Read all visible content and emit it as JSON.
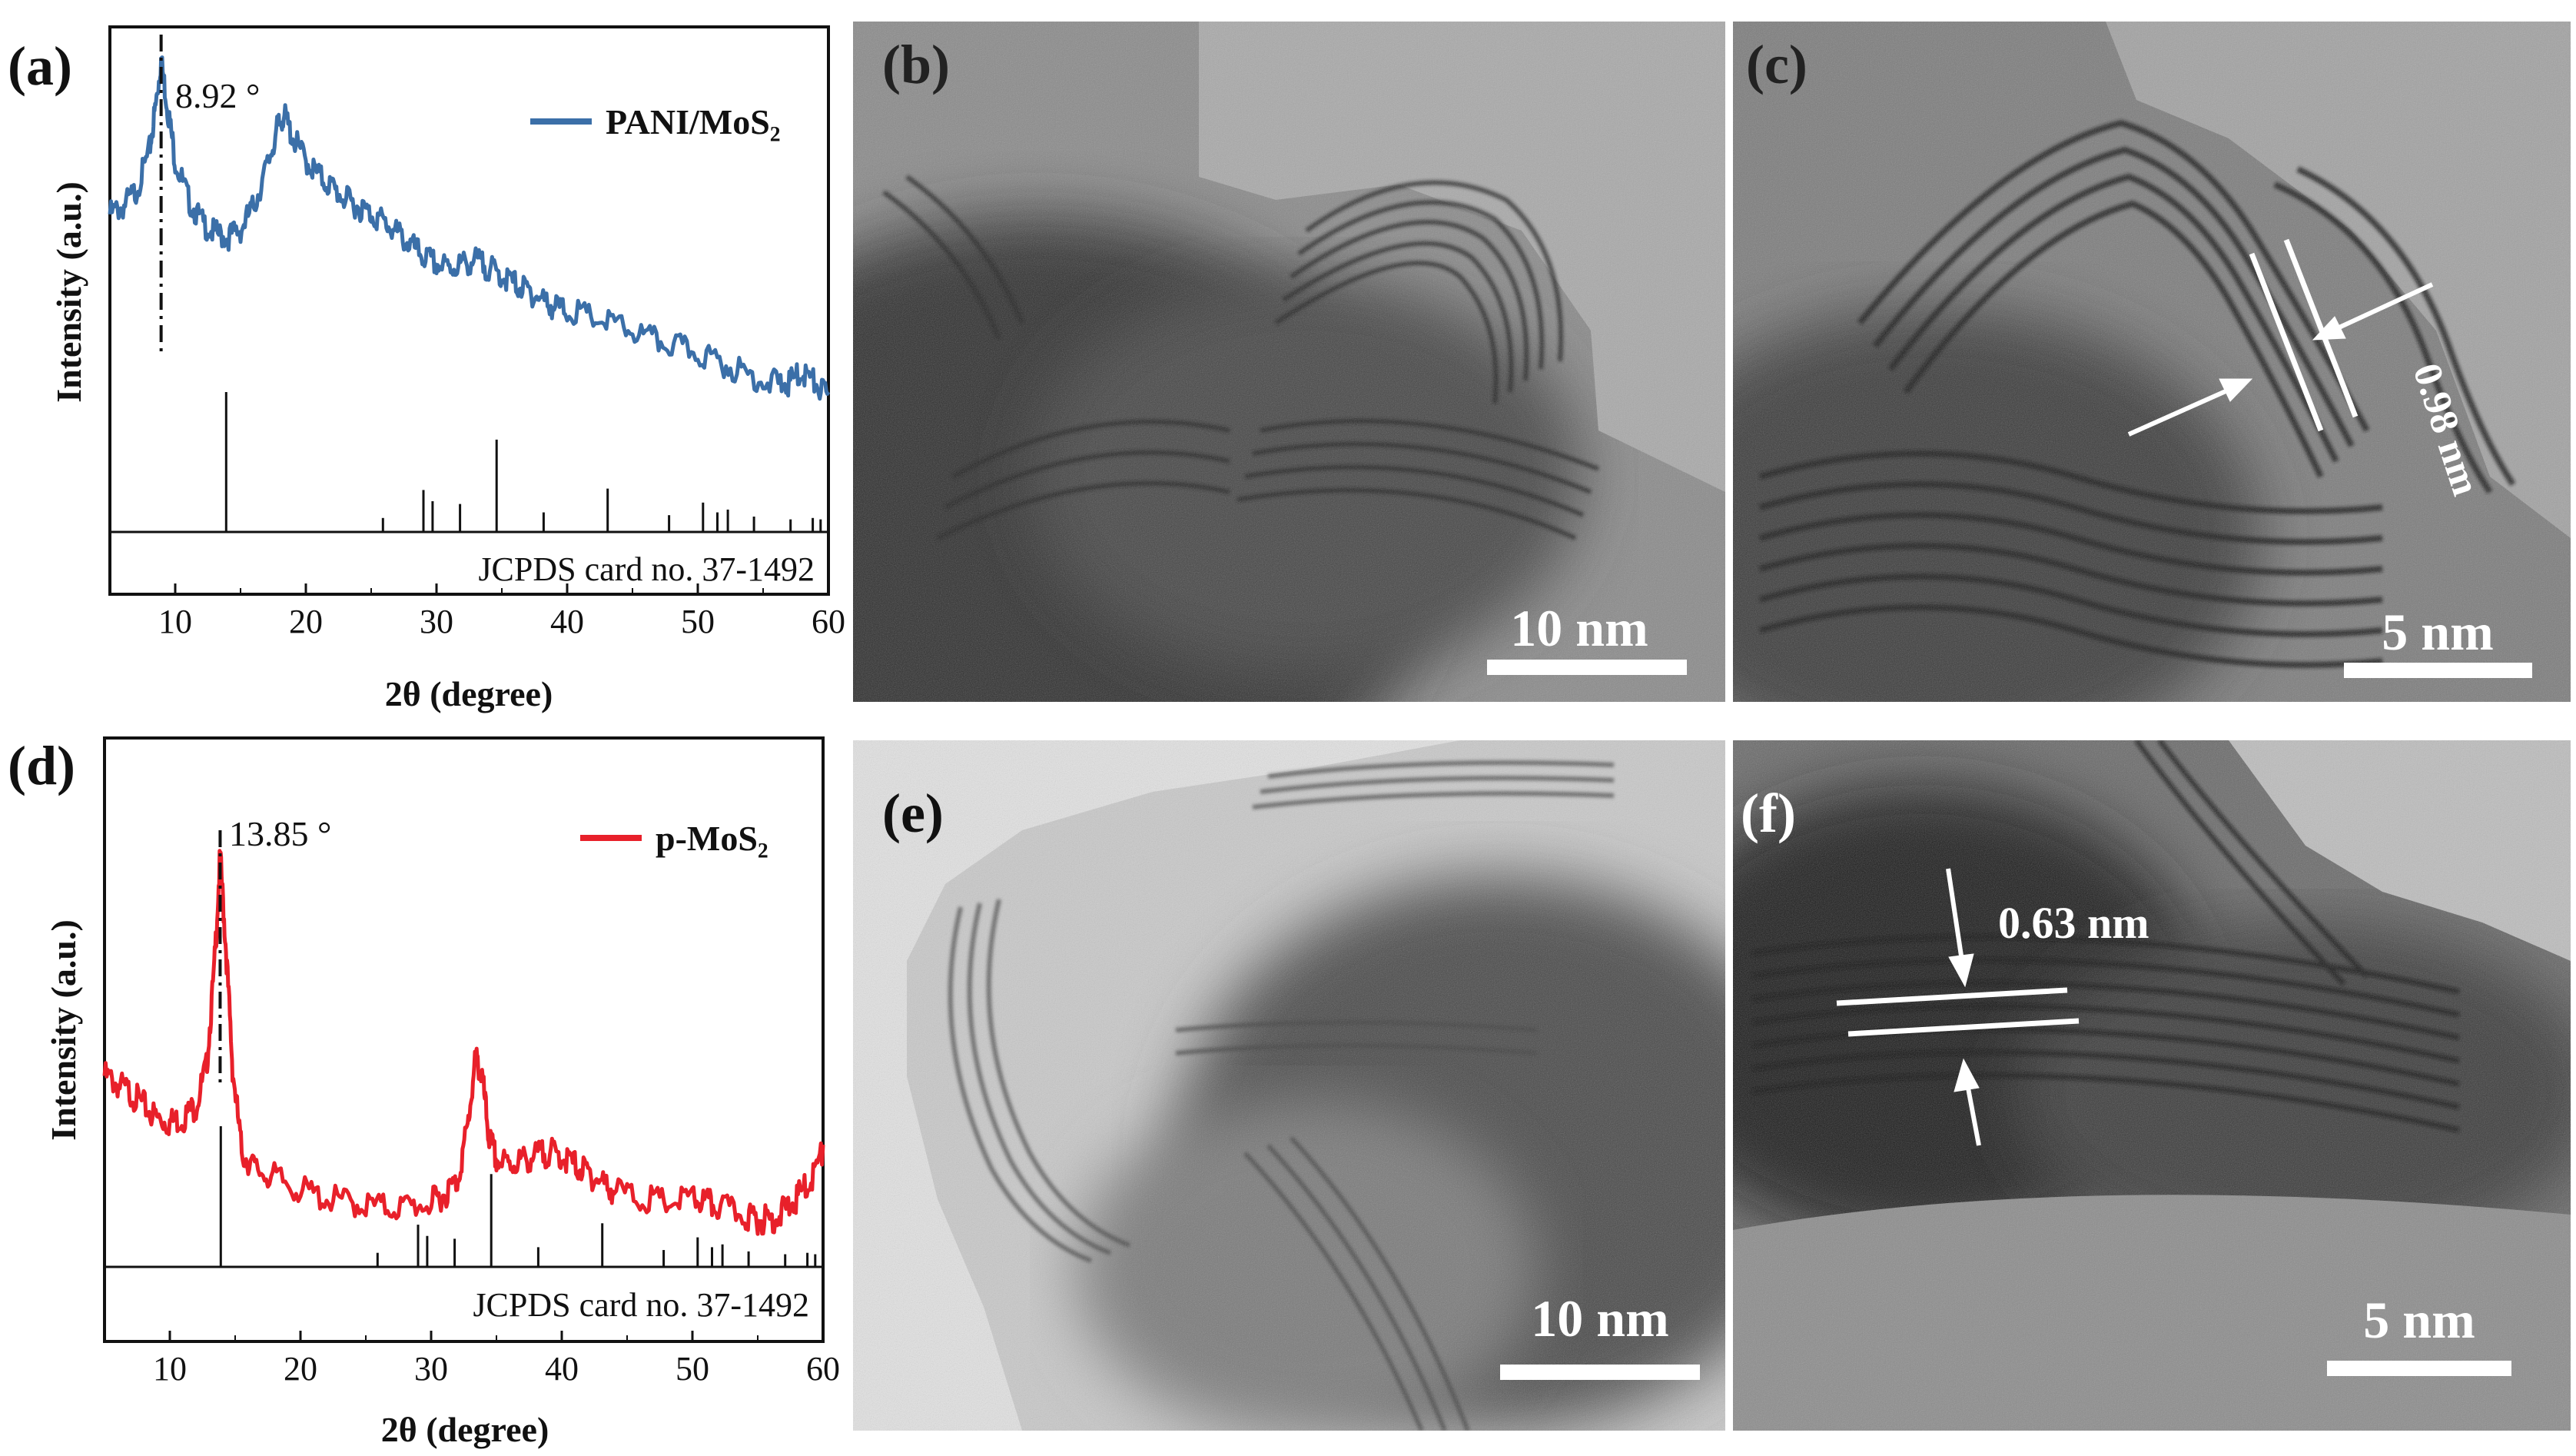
{
  "panels": [
    {
      "id": "a",
      "label": "(a)",
      "chart_data": {
        "type": "line",
        "xlabel": "2θ (degree)",
        "ylabel": "Intensity (a.u.)",
        "xlim": [
          5,
          60
        ],
        "xticks": [
          10,
          20,
          30,
          40,
          50,
          60
        ],
        "legend": "PANI/MoS₂",
        "legend_position": "top-right",
        "peak_label": "8.92 °",
        "peak_x": 8.92,
        "reference_label": "JCPDS card no. 37-1492",
        "series": [
          {
            "name": "PANI/MoS₂",
            "color": "#3b6fa8",
            "points": [
              [
                5,
                0.58
              ],
              [
                6,
                0.6
              ],
              [
                7,
                0.64
              ],
              [
                8,
                0.74
              ],
              [
                8.5,
                0.86
              ],
              [
                8.92,
                0.98
              ],
              [
                9.4,
                0.86
              ],
              [
                10,
                0.72
              ],
              [
                11,
                0.62
              ],
              [
                12,
                0.56
              ],
              [
                13,
                0.53
              ],
              [
                14,
                0.52
              ],
              [
                15,
                0.54
              ],
              [
                16,
                0.6
              ],
              [
                17,
                0.7
              ],
              [
                17.8,
                0.8
              ],
              [
                18.3,
                0.84
              ],
              [
                19,
                0.78
              ],
              [
                20,
                0.72
              ],
              [
                21,
                0.68
              ],
              [
                22,
                0.65
              ],
              [
                23,
                0.62
              ],
              [
                24,
                0.6
              ],
              [
                25,
                0.58
              ],
              [
                26,
                0.56
              ],
              [
                27,
                0.53
              ],
              [
                28,
                0.5
              ],
              [
                29,
                0.47
              ],
              [
                30,
                0.45
              ],
              [
                31,
                0.44
              ],
              [
                32,
                0.45
              ],
              [
                33,
                0.46
              ],
              [
                34,
                0.44
              ],
              [
                35,
                0.42
              ],
              [
                36,
                0.4
              ],
              [
                37,
                0.38
              ],
              [
                38,
                0.36
              ],
              [
                39,
                0.34
              ],
              [
                40,
                0.33
              ],
              [
                42,
                0.31
              ],
              [
                44,
                0.29
              ],
              [
                46,
                0.26
              ],
              [
                48,
                0.24
              ],
              [
                50,
                0.22
              ],
              [
                52,
                0.19
              ],
              [
                54,
                0.16
              ],
              [
                56,
                0.14
              ],
              [
                57,
                0.14
              ],
              [
                58,
                0.17
              ],
              [
                59,
                0.14
              ],
              [
                60,
                0.1
              ]
            ]
          }
        ],
        "reference_lines": [
          {
            "x": 13.9,
            "h": 1.0
          },
          {
            "x": 25.9,
            "h": 0.1
          },
          {
            "x": 29.0,
            "h": 0.3
          },
          {
            "x": 29.7,
            "h": 0.22
          },
          {
            "x": 31.8,
            "h": 0.2
          },
          {
            "x": 34.6,
            "h": 0.66
          },
          {
            "x": 38.2,
            "h": 0.14
          },
          {
            "x": 43.1,
            "h": 0.31
          },
          {
            "x": 47.8,
            "h": 0.12
          },
          {
            "x": 50.4,
            "h": 0.21
          },
          {
            "x": 51.5,
            "h": 0.14
          },
          {
            "x": 52.3,
            "h": 0.16
          },
          {
            "x": 54.3,
            "h": 0.11
          },
          {
            "x": 57.1,
            "h": 0.09
          },
          {
            "x": 58.8,
            "h": 0.1
          },
          {
            "x": 59.4,
            "h": 0.09
          }
        ]
      }
    },
    {
      "id": "d",
      "label": "(d)",
      "chart_data": {
        "type": "line",
        "xlabel": "2θ (degree)",
        "ylabel": "Intensity (a.u.)",
        "xlim": [
          5,
          60
        ],
        "xticks": [
          10,
          20,
          30,
          40,
          50,
          60
        ],
        "legend": "p-MoS₂",
        "legend_position": "top-right",
        "peak_label": "13.85 °",
        "peak_x": 13.85,
        "reference_label": "JCPDS card no. 37-1492",
        "series": [
          {
            "name": "p-MoS₂",
            "color": "#e8202a",
            "points": [
              [
                5,
                0.4
              ],
              [
                6,
                0.38
              ],
              [
                7,
                0.36
              ],
              [
                8,
                0.33
              ],
              [
                9,
                0.3
              ],
              [
                10,
                0.29
              ],
              [
                11,
                0.3
              ],
              [
                12,
                0.33
              ],
              [
                12.8,
                0.42
              ],
              [
                13.4,
                0.65
              ],
              [
                13.85,
                0.92
              ],
              [
                14.3,
                0.7
              ],
              [
                14.8,
                0.42
              ],
              [
                15.5,
                0.22
              ],
              [
                16.5,
                0.18
              ],
              [
                18,
                0.16
              ],
              [
                20,
                0.13
              ],
              [
                22,
                0.11
              ],
              [
                24,
                0.1
              ],
              [
                26,
                0.09
              ],
              [
                28,
                0.09
              ],
              [
                30,
                0.1
              ],
              [
                31,
                0.12
              ],
              [
                32,
                0.15
              ],
              [
                32.8,
                0.28
              ],
              [
                33.4,
                0.44
              ],
              [
                33.9,
                0.4
              ],
              [
                34.4,
                0.26
              ],
              [
                35,
                0.2
              ],
              [
                36,
                0.19
              ],
              [
                37,
                0.2
              ],
              [
                38,
                0.21
              ],
              [
                39,
                0.22
              ],
              [
                40,
                0.21
              ],
              [
                41,
                0.19
              ],
              [
                42,
                0.17
              ],
              [
                43,
                0.15
              ],
              [
                44,
                0.13
              ],
              [
                46,
                0.11
              ],
              [
                48,
                0.1
              ],
              [
                50,
                0.11
              ],
              [
                51,
                0.1
              ],
              [
                52,
                0.09
              ],
              [
                54,
                0.07
              ],
              [
                55,
                0.06
              ],
              [
                56,
                0.06
              ],
              [
                57,
                0.08
              ],
              [
                58,
                0.11
              ],
              [
                59,
                0.15
              ],
              [
                60,
                0.22
              ]
            ]
          }
        ],
        "reference_lines": [
          {
            "x": 13.9,
            "h": 1.0
          },
          {
            "x": 25.9,
            "h": 0.1
          },
          {
            "x": 29.0,
            "h": 0.3
          },
          {
            "x": 29.7,
            "h": 0.22
          },
          {
            "x": 31.8,
            "h": 0.2
          },
          {
            "x": 34.6,
            "h": 0.66
          },
          {
            "x": 38.2,
            "h": 0.14
          },
          {
            "x": 43.1,
            "h": 0.31
          },
          {
            "x": 47.8,
            "h": 0.12
          },
          {
            "x": 50.4,
            "h": 0.21
          },
          {
            "x": 51.5,
            "h": 0.14
          },
          {
            "x": 52.3,
            "h": 0.16
          },
          {
            "x": 54.3,
            "h": 0.11
          },
          {
            "x": 57.1,
            "h": 0.09
          },
          {
            "x": 58.8,
            "h": 0.1
          },
          {
            "x": 59.4,
            "h": 0.09
          }
        ]
      }
    }
  ],
  "tem_images": [
    {
      "id": "b",
      "label": "(b)",
      "scale_bar": "10 nm",
      "lattice_label": ""
    },
    {
      "id": "c",
      "label": "(c)",
      "scale_bar": "5 nm",
      "lattice_label": "0.98 nm"
    },
    {
      "id": "e",
      "label": "(e)",
      "scale_bar": "10 nm",
      "lattice_label": ""
    },
    {
      "id": "f",
      "label": "(f)",
      "scale_bar": "5 nm",
      "lattice_label": "0.63 nm"
    }
  ]
}
